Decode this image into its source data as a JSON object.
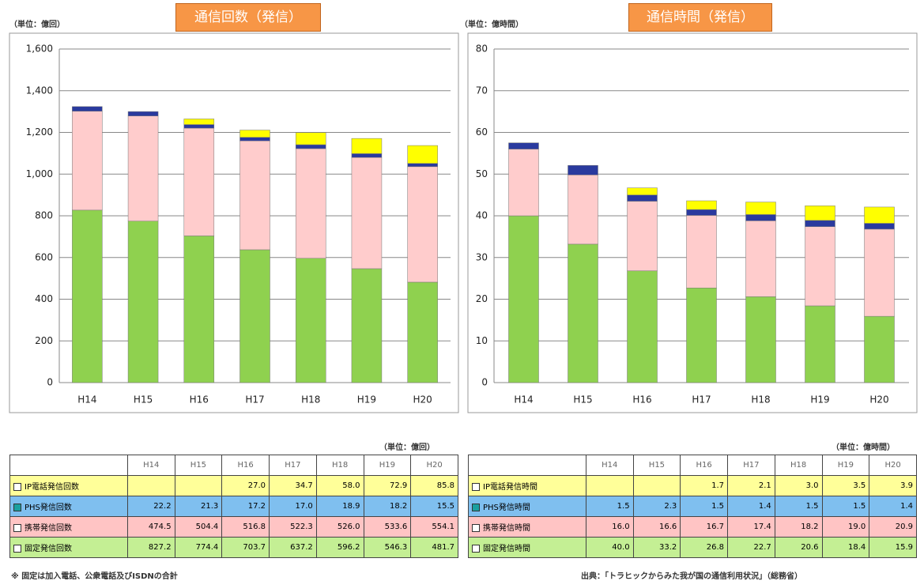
{
  "chart_data": [
    {
      "type": "bar",
      "stacked": true,
      "title": "通信回数（発信）",
      "unit": "（単位：億回）",
      "categories": [
        "H14",
        "H15",
        "H16",
        "H17",
        "H18",
        "H19",
        "H20"
      ],
      "series": [
        {
          "name": "IP電話発信回数",
          "color": "#ffff00",
          "table_color": "#ffff99",
          "values": [
            null,
            null,
            27.0,
            34.7,
            58.0,
            72.9,
            85.8
          ],
          "value_labels": [
            null,
            null,
            "27.0",
            "34.7",
            "58.0",
            "72.9",
            "85.8"
          ]
        },
        {
          "name": "PHS発信回数",
          "color": "#2a3a9e",
          "table_color": "#7fbfef",
          "values": [
            22.2,
            21.3,
            17.2,
            17.0,
            18.9,
            18.2,
            15.5
          ],
          "value_labels": [
            "22.2",
            "21.3",
            "17.2",
            "17.0",
            "18.9",
            "18.2",
            "15.5"
          ]
        },
        {
          "name": "携帯発信回数",
          "color": "#ffcccc",
          "table_color": "#ffc4c4",
          "values": [
            474.5,
            504.4,
            516.8,
            522.3,
            526.0,
            533.6,
            554.1
          ],
          "value_labels": [
            "474.5",
            "504.4",
            "516.8",
            "522.3",
            "526.0",
            "533.6",
            "554.1"
          ]
        },
        {
          "name": "固定発信回数",
          "color": "#8fd14f",
          "table_color": "#c4ef94",
          "values": [
            827.2,
            774.4,
            703.7,
            637.2,
            596.2,
            546.3,
            481.7
          ],
          "value_labels": [
            "827.2",
            "774.4",
            "703.7",
            "637.2",
            "596.2",
            "546.3",
            "481.7"
          ]
        }
      ],
      "ylim": [
        0,
        1600
      ],
      "yticks": [
        0,
        200,
        400,
        600,
        800,
        {
          "value": 1000,
          "label": "1,000"
        },
        {
          "value": 1200,
          "label": "1,200"
        },
        {
          "value": 1400,
          "label": "1,400"
        },
        {
          "value": 1600,
          "label": "1,600"
        }
      ],
      "grid": true,
      "footnote": "※ 固定は加入電話、公衆電話及びISDNの合計"
    },
    {
      "type": "bar",
      "stacked": true,
      "title": "通信時間（発信）",
      "unit": "（単位：億時間）",
      "categories": [
        "H14",
        "H15",
        "H16",
        "H17",
        "H18",
        "H19",
        "H20"
      ],
      "series": [
        {
          "name": "IP電話発信時間",
          "color": "#ffff00",
          "table_color": "#ffff99",
          "values": [
            null,
            null,
            1.7,
            2.1,
            3.0,
            3.5,
            3.9
          ],
          "value_labels": [
            null,
            null,
            "1.7",
            "2.1",
            "3.0",
            "3.5",
            "3.9"
          ]
        },
        {
          "name": "PHS発信時間",
          "color": "#2a3a9e",
          "table_color": "#7fbfef",
          "values": [
            1.5,
            2.3,
            1.5,
            1.4,
            1.5,
            1.5,
            1.4
          ],
          "value_labels": [
            "1.5",
            "2.3",
            "1.5",
            "1.4",
            "1.5",
            "1.5",
            "1.4"
          ]
        },
        {
          "name": "携帯発信時間",
          "color": "#ffcccc",
          "table_color": "#ffc4c4",
          "values": [
            16.0,
            16.6,
            16.7,
            17.4,
            18.2,
            19.0,
            20.9
          ],
          "value_labels": [
            "16.0",
            "16.6",
            "16.7",
            "17.4",
            "18.2",
            "19.0",
            "20.9"
          ]
        },
        {
          "name": "固定発信時間",
          "color": "#8fd14f",
          "table_color": "#c4ef94",
          "values": [
            40.0,
            33.2,
            26.8,
            22.7,
            20.6,
            18.4,
            15.9
          ],
          "value_labels": [
            "40.0",
            "33.2",
            "26.8",
            "22.7",
            "20.6",
            "18.4",
            "15.9"
          ]
        }
      ],
      "ylim": [
        0,
        80
      ],
      "yticks": [
        0,
        10,
        20,
        30,
        40,
        50,
        60,
        70,
        80
      ],
      "grid": true,
      "footnote": "出典：「トラヒックからみた我が国の通信利用状況」（総務省）"
    }
  ]
}
